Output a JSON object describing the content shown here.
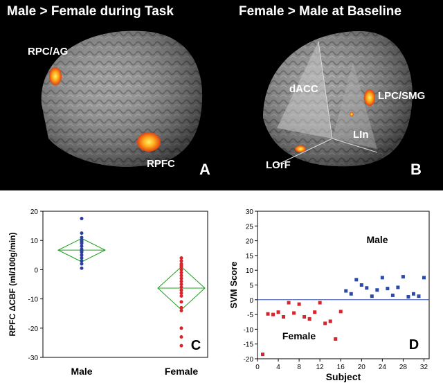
{
  "panels": {
    "A": {
      "title": "Male > Female during Task",
      "regions": [
        "RPC/AG",
        "RPFC"
      ],
      "letter": "A"
    },
    "B": {
      "title": "Female > Male at Baseline",
      "regions": [
        "dACC",
        "LPC/SMG",
        "LIn",
        "LOrF"
      ],
      "letter": "B"
    }
  },
  "chart_data": [
    {
      "panel": "C",
      "type": "scatter",
      "ylabel": "RPFC ΔCBF (ml/100g/min)",
      "ylim": [
        -30,
        20
      ],
      "yticks": [
        -30,
        -20,
        -10,
        0,
        10,
        20
      ],
      "categories": [
        "Male",
        "Female"
      ],
      "colors": {
        "Male": "#2b3f9e",
        "Female": "#d9242b",
        "diamond": "#1aa01a"
      },
      "series": [
        {
          "name": "Male",
          "values": [
            17.5,
            12.5,
            11,
            10,
            9.5,
            9,
            8,
            7,
            6.5,
            6,
            5,
            4,
            3,
            2,
            0.5
          ]
        },
        {
          "name": "Female",
          "values": [
            4,
            3,
            2,
            1.5,
            1,
            0,
            -1,
            -2,
            -3,
            -4,
            -5,
            -6,
            -7,
            -8,
            -9,
            -11,
            -13,
            -14,
            -20,
            -23,
            -26
          ]
        }
      ],
      "means": {
        "Male": 6.7,
        "Female": -6.3
      },
      "ci": {
        "Male": [
          2.7,
          10.7
        ],
        "Female": [
          -13.7,
          1.0
        ]
      },
      "letter": "C"
    },
    {
      "panel": "D",
      "type": "scatter",
      "xlabel": "Subject",
      "ylabel": "SVM Score",
      "xlim": [
        0,
        33
      ],
      "ylim": [
        -20,
        30
      ],
      "xticks": [
        0,
        4,
        8,
        12,
        16,
        20,
        24,
        28,
        32
      ],
      "yticks": [
        -20,
        -15,
        -10,
        -5,
        0,
        5,
        10,
        15,
        20,
        25,
        30
      ],
      "series": [
        {
          "name": "Female",
          "color": "#d9242b",
          "x": [
            1,
            2,
            3,
            4,
            5,
            6,
            7,
            8,
            9,
            10,
            11,
            12,
            13,
            14,
            15,
            16
          ],
          "y": [
            -18.5,
            -4.8,
            -5,
            -4.2,
            -5.8,
            -1,
            -4.5,
            -1.5,
            -5.8,
            -6.5,
            -4.2,
            -1,
            -8,
            -7.3,
            -13.3,
            -4
          ]
        },
        {
          "name": "Male",
          "color": "#2b4aa8",
          "x": [
            17,
            18,
            19,
            20,
            21,
            22,
            23,
            24,
            25,
            26,
            27,
            28,
            29,
            30,
            31,
            32
          ],
          "y": [
            3,
            2,
            6.8,
            5,
            4,
            1.2,
            3.3,
            7.5,
            3.8,
            1.5,
            4.2,
            7.8,
            1,
            2,
            1.2,
            7.5
          ]
        }
      ],
      "letter": "D"
    }
  ]
}
